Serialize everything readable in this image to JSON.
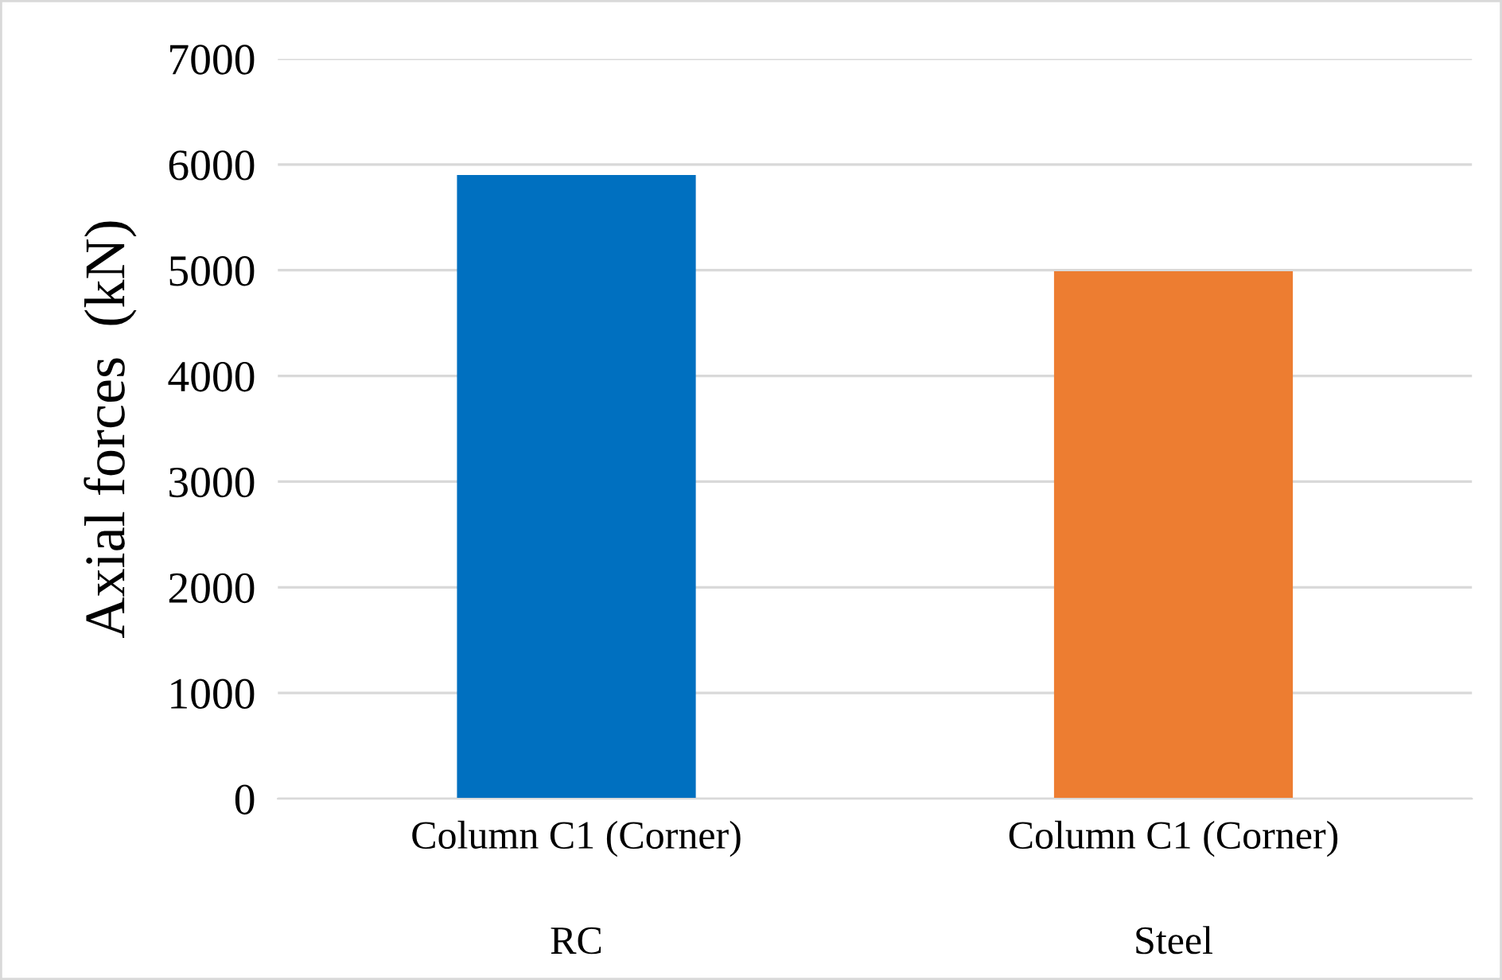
{
  "chart_data": {
    "type": "bar",
    "ylabel": "Axial forces  (kN)",
    "categories": [
      "Column C1 (Corner)\n\nRC",
      "Column C1 (Corner)\n\nSteel"
    ],
    "values": [
      5900,
      4990
    ],
    "colors": [
      "#0070c0",
      "#ed7d31"
    ],
    "ylim": [
      0,
      7000
    ],
    "yticks": [
      0,
      1000,
      2000,
      3000,
      4000,
      5000,
      6000,
      7000
    ],
    "grid": "y"
  }
}
